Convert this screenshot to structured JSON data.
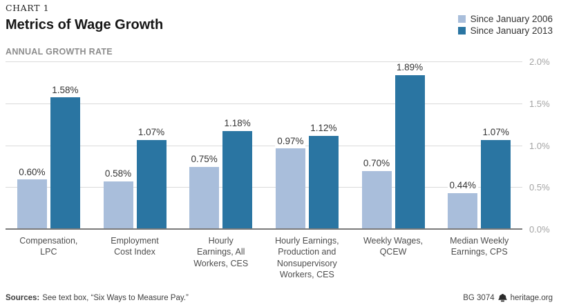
{
  "header": {
    "kicker": "CHART 1",
    "title": "Metrics of Wage Growth",
    "subtitle": "ANNUAL GROWTH RATE"
  },
  "chart_data": {
    "type": "bar",
    "title": "Metrics of Wage Growth",
    "subtitle": "ANNUAL GROWTH RATE",
    "unit": "%",
    "categories": [
      "Compensation,\nLPC",
      "Employment\nCost Index",
      "Hourly\nEarnings, All\nWorkers, CES",
      "Hourly Earnings,\nProduction and\nNonsupervisory\nWorkers, CES",
      "Weekly Wages,\nQCEW",
      "Median Weekly\nEarnings, CPS"
    ],
    "series": [
      {
        "name": "Since January 2006",
        "color": "#a9bedb",
        "values": [
          0.6,
          0.58,
          0.75,
          0.97,
          0.7,
          0.44
        ]
      },
      {
        "name": "Since January 2013",
        "color": "#2a75a2",
        "values": [
          1.58,
          1.07,
          1.18,
          1.12,
          1.89,
          1.07
        ]
      }
    ],
    "value_labels": [
      [
        "0.60%",
        "0.58%",
        "0.75%",
        "0.97%",
        "0.70%",
        "0.44%"
      ],
      [
        "1.58%",
        "1.07%",
        "1.18%",
        "1.12%",
        "1.89%",
        "1.07%"
      ]
    ],
    "ylim": [
      0,
      2.0
    ],
    "yticks": [
      "0.0%",
      "0.5%",
      "1.0%",
      "1.5%",
      "2.0%"
    ],
    "yaxis_side": "right",
    "grid": true,
    "legend_position": "top-right",
    "colors": {
      "gridline": "#dadada",
      "baseline": "#7a7a7a",
      "tick_label": "#a3a3a3"
    }
  },
  "footer": {
    "sources_label": "Sources:",
    "sources_text": "See text box, “Six Ways to Measure Pay.”",
    "doc_id": "BG 3074",
    "site": "heritage.org"
  }
}
